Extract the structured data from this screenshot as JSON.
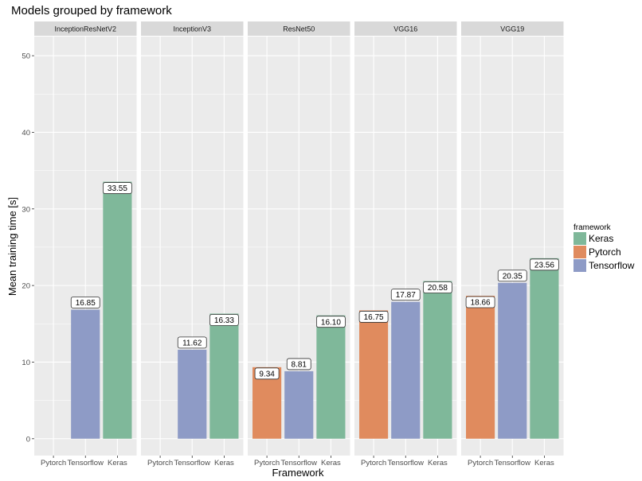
{
  "chart_data": {
    "type": "bar",
    "title": "Models grouped by framework",
    "xlabel": "Framework",
    "ylabel": "Mean training time [s]",
    "ylim": [
      -2.2,
      52.5
    ],
    "yticks": [
      0,
      10,
      20,
      30,
      40,
      50
    ],
    "categories": [
      "Pytorch",
      "Tensorflow",
      "Keras"
    ],
    "legend": {
      "title": "framework",
      "position": "right",
      "entries": [
        {
          "name": "Keras",
          "color": "#7fb89a"
        },
        {
          "name": "Pytorch",
          "color": "#e08b5e"
        },
        {
          "name": "Tensorflow",
          "color": "#8e9bc6"
        }
      ]
    },
    "colors": {
      "Keras": "#7fb89a",
      "Pytorch": "#e08b5e",
      "Tensorflow": "#8e9bc6",
      "panel_bg": "#ebebeb",
      "strip_bg": "#d9d9d9",
      "grid": "#ffffff"
    },
    "grid": true,
    "facets": [
      {
        "name": "InceptionResNetV2",
        "values": {
          "Pytorch": null,
          "Tensorflow": 16.85,
          "Keras": 33.55
        },
        "labels": {
          "Tensorflow": "16.85",
          "Keras": "33.55"
        }
      },
      {
        "name": "InceptionV3",
        "values": {
          "Pytorch": null,
          "Tensorflow": 11.62,
          "Keras": 16.33
        },
        "labels": {
          "Tensorflow": "11.62",
          "Keras": "16.33"
        }
      },
      {
        "name": "ResNet50",
        "values": {
          "Pytorch": 9.34,
          "Tensorflow": 8.81,
          "Keras": 16.1
        },
        "labels": {
          "Pytorch": "9.34",
          "Tensorflow": "8.81",
          "Keras": "16.10"
        }
      },
      {
        "name": "VGG16",
        "values": {
          "Pytorch": 16.75,
          "Tensorflow": 17.87,
          "Keras": 20.58
        },
        "labels": {
          "Pytorch": "16.75",
          "Tensorflow": "17.87",
          "Keras": "20.58"
        }
      },
      {
        "name": "VGG19",
        "values": {
          "Pytorch": 18.66,
          "Tensorflow": 20.35,
          "Keras": 23.56
        },
        "labels": {
          "Pytorch": "18.66",
          "Tensorflow": "20.35",
          "Keras": "23.56"
        }
      }
    ]
  }
}
